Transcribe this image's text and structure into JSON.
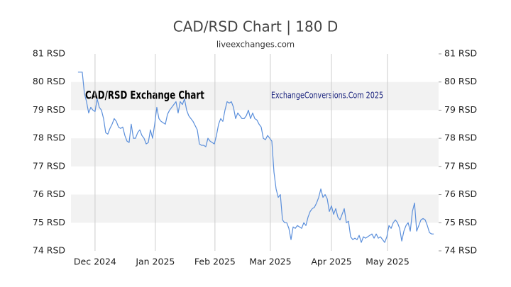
{
  "chart_data": {
    "type": "line",
    "title": "CAD/RSD Chart | 180 D",
    "subtitle": "liveexchanges.com",
    "annotations": [
      "CAD/RSD Exchange Chart",
      "ExchangeConversions.Com 2025"
    ],
    "series": [
      {
        "name": "CAD/RSD",
        "color": "#5b8fdb",
        "values": [
          80.35,
          80.35,
          80.35,
          79.6,
          79.3,
          78.9,
          79.1,
          79.0,
          78.95,
          79.4,
          79.1,
          79.0,
          78.7,
          78.2,
          78.15,
          78.35,
          78.5,
          78.7,
          78.6,
          78.4,
          78.35,
          78.4,
          78.1,
          77.9,
          77.85,
          78.5,
          78.0,
          78.0,
          78.2,
          78.3,
          78.1,
          78.0,
          77.8,
          77.85,
          78.3,
          78.0,
          78.5,
          79.1,
          78.7,
          78.6,
          78.55,
          78.5,
          78.85,
          79.0,
          79.1,
          79.2,
          79.3,
          78.9,
          79.3,
          79.2,
          79.4,
          79.0,
          78.8,
          78.7,
          78.6,
          78.45,
          78.3,
          77.8,
          77.75,
          77.75,
          77.7,
          78.0,
          77.9,
          77.85,
          77.8,
          78.1,
          78.5,
          78.7,
          78.6,
          79.0,
          79.3,
          79.25,
          79.3,
          79.1,
          78.7,
          78.9,
          78.8,
          78.7,
          78.7,
          78.8,
          79.0,
          78.7,
          78.9,
          78.7,
          78.65,
          78.5,
          78.4,
          78.0,
          77.95,
          78.1,
          78.0,
          77.9,
          76.8,
          76.2,
          75.9,
          76.0,
          75.1,
          75.0,
          75.0,
          74.8,
          74.4,
          74.85,
          74.8,
          74.9,
          74.85,
          74.8,
          75.0,
          74.9,
          75.2,
          75.4,
          75.5,
          75.55,
          75.7,
          75.9,
          76.2,
          75.9,
          76.0,
          75.85,
          75.4,
          75.6,
          75.3,
          75.5,
          75.2,
          75.1,
          75.3,
          75.5,
          75.0,
          75.05,
          74.5,
          74.4,
          74.45,
          74.4,
          74.55,
          74.3,
          74.5,
          74.45,
          74.5,
          74.55,
          74.6,
          74.45,
          74.6,
          74.45,
          74.5,
          74.4,
          74.3,
          74.5,
          74.9,
          74.8,
          75.0,
          75.1,
          75.0,
          74.8,
          74.35,
          74.7,
          74.9,
          75.0,
          74.7,
          75.4,
          75.7,
          74.7,
          74.9,
          75.1,
          75.15,
          75.1,
          74.9,
          74.65,
          74.6,
          74.6
        ]
      }
    ],
    "xlim": [
      -3.3,
      169.3
    ],
    "xticks": [
      {
        "value": 8,
        "label": "Dec 2024"
      },
      {
        "value": 36.3,
        "label": "Jan 2025"
      },
      {
        "value": 64.3,
        "label": "Feb 2025"
      },
      {
        "value": 90.3,
        "label": "Mar 2025"
      },
      {
        "value": 119,
        "label": "Apr 2025"
      },
      {
        "value": 145.3,
        "label": "May 2025"
      }
    ],
    "ylim": [
      74,
      81
    ],
    "yticks": [
      {
        "value": 74,
        "label": "74 RSD"
      },
      {
        "value": 75,
        "label": "75 RSD"
      },
      {
        "value": 76,
        "label": "76 RSD"
      },
      {
        "value": 77,
        "label": "77 RSD"
      },
      {
        "value": 78,
        "label": "78 RSD"
      },
      {
        "value": 79,
        "label": "79 RSD"
      },
      {
        "value": 80,
        "label": "80 RSD"
      },
      {
        "value": 81,
        "label": "81 RSD"
      }
    ],
    "grid": true,
    "band_color": "#f2f2f2"
  }
}
